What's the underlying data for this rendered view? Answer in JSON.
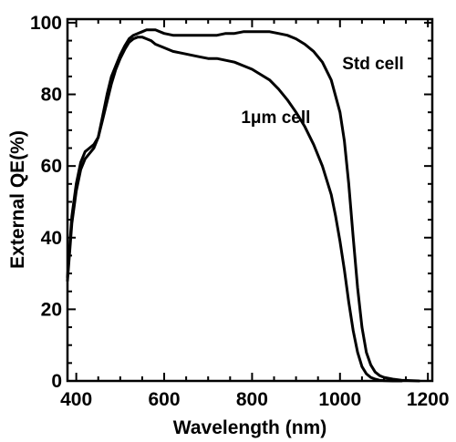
{
  "chart_data": {
    "type": "line",
    "xlabel": "Wavelength (nm)",
    "ylabel": "External QE(%)",
    "xlim": [
      380,
      1210
    ],
    "ylim": [
      0,
      101
    ],
    "xticks": [
      400,
      600,
      800,
      1000,
      1200
    ],
    "yticks": [
      0,
      20,
      40,
      60,
      80,
      100
    ],
    "xminor_step": 50,
    "yminor_step": 5,
    "grid": false,
    "series": [
      {
        "name": "Std cell",
        "x": [
          380,
          390,
          400,
          410,
          420,
          430,
          440,
          450,
          460,
          470,
          480,
          490,
          500,
          510,
          520,
          530,
          540,
          550,
          560,
          570,
          580,
          590,
          600,
          620,
          640,
          660,
          680,
          700,
          720,
          740,
          760,
          780,
          800,
          820,
          840,
          860,
          880,
          900,
          920,
          940,
          960,
          980,
          1000,
          1010,
          1020,
          1030,
          1040,
          1050,
          1060,
          1070,
          1080,
          1090,
          1100,
          1120,
          1140,
          1160,
          1180
        ],
        "y": [
          28,
          44,
          53,
          59,
          62,
          63.5,
          65,
          68,
          74,
          80,
          85,
          88,
          91,
          93.5,
          95.5,
          96.5,
          97,
          97.5,
          98,
          98,
          98,
          97.5,
          97,
          96.5,
          96.5,
          96.5,
          96.5,
          96.5,
          96.5,
          97,
          97,
          97.5,
          97.5,
          97.5,
          97.5,
          97,
          96.5,
          95.5,
          94,
          92,
          89,
          84,
          75,
          67,
          55,
          40,
          26,
          15,
          8,
          4.5,
          2.5,
          1.5,
          1,
          0.5,
          0.2,
          0.1,
          0
        ]
      },
      {
        "name": "1μm cell",
        "x": [
          380,
          390,
          400,
          410,
          420,
          430,
          440,
          450,
          460,
          470,
          480,
          490,
          500,
          510,
          520,
          530,
          540,
          550,
          560,
          570,
          580,
          600,
          620,
          640,
          660,
          680,
          700,
          720,
          740,
          760,
          780,
          800,
          820,
          840,
          860,
          880,
          900,
          920,
          940,
          960,
          980,
          990,
          1000,
          1010,
          1020,
          1030,
          1040,
          1050,
          1060,
          1070,
          1080,
          1090,
          1100,
          1120,
          1140
        ],
        "y": [
          29,
          46,
          55,
          61,
          64,
          65,
          66,
          68,
          73,
          78,
          83,
          87,
          90,
          92.5,
          94.5,
          95.5,
          96,
          96,
          95.5,
          95,
          94,
          93,
          92,
          91.5,
          91,
          90.5,
          90,
          90,
          89.5,
          89,
          88,
          87,
          85.5,
          84,
          81.5,
          78.5,
          75,
          71,
          66,
          60,
          52,
          46,
          39,
          31,
          22,
          14,
          8,
          4,
          2,
          1,
          0.5,
          0.2,
          0.1,
          0,
          0
        ]
      }
    ],
    "annotations": [
      {
        "text": "Std cell",
        "x": 1005,
        "y": 87
      },
      {
        "text": "1μm cell",
        "x": 775,
        "y": 72
      }
    ]
  }
}
